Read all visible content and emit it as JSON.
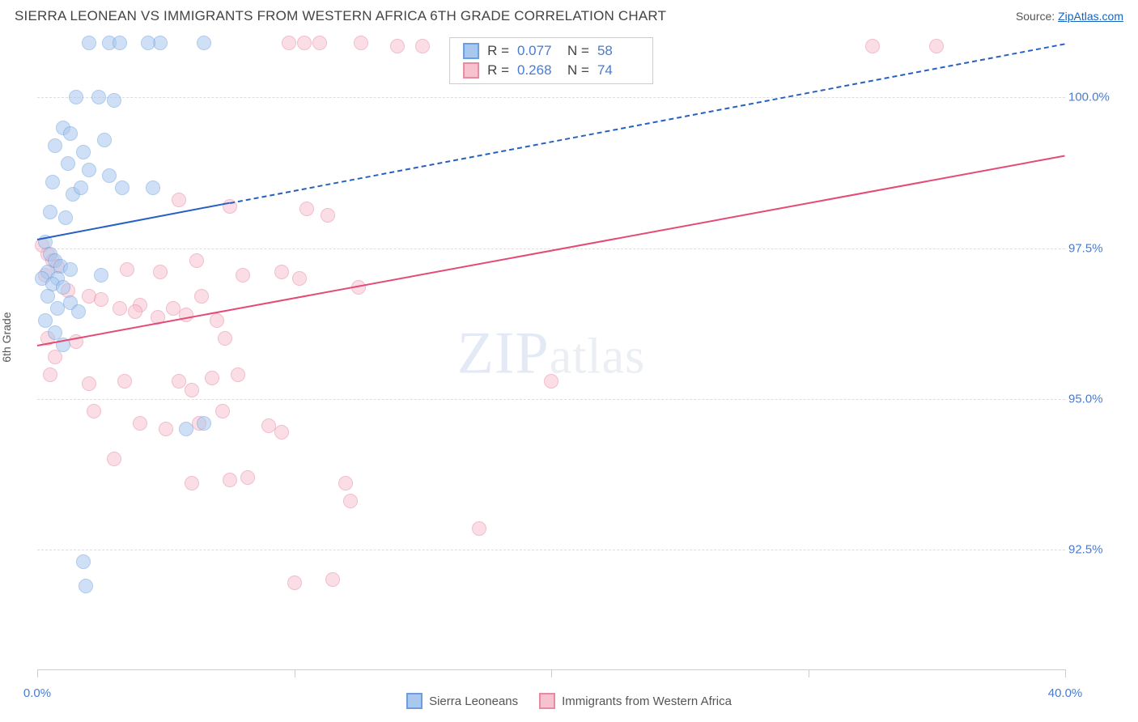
{
  "title": "SIERRA LEONEAN VS IMMIGRANTS FROM WESTERN AFRICA 6TH GRADE CORRELATION CHART",
  "source_label": "Source:",
  "source_link": "ZipAtlas.com",
  "y_axis_label": "6th Grade",
  "watermark": {
    "zip": "ZIP",
    "atlas": "atlas"
  },
  "chart": {
    "type": "scatter",
    "xlim": [
      0,
      40
    ],
    "ylim": [
      90.5,
      101.0
    ],
    "x_ticks": [
      0,
      10,
      20,
      30,
      40
    ],
    "x_tick_labels": [
      "0.0%",
      null,
      null,
      null,
      "40.0%"
    ],
    "y_ticks": [
      92.5,
      95.0,
      97.5,
      100.0
    ],
    "y_tick_labels": [
      "92.5%",
      "95.0%",
      "97.5%",
      "100.0%"
    ],
    "grid_color": "#dddddd",
    "background_color": "#ffffff",
    "marker_size": 18,
    "axis_color": "#cccccc",
    "label_color": "#4a7bd0"
  },
  "series": {
    "sl": {
      "label": "Sierra Leoneans",
      "fill_color": "#a9c8ef",
      "stroke_color": "#6d9fde",
      "fill_opacity": 0.55,
      "line_color": "#2660c2",
      "line_width": 2.5,
      "trend": {
        "x0": 0,
        "y0": 97.65,
        "x1": 40,
        "y1": 100.9,
        "solid_until_x": 7.5
      },
      "R": "0.077",
      "N": "58",
      "points": [
        [
          2.8,
          100.9
        ],
        [
          3.2,
          100.9
        ],
        [
          2.0,
          100.9
        ],
        [
          4.8,
          100.9
        ],
        [
          4.3,
          100.9
        ],
        [
          6.5,
          100.9
        ],
        [
          1.5,
          100.0
        ],
        [
          2.4,
          100.0
        ],
        [
          3.0,
          99.95
        ],
        [
          1.0,
          99.5
        ],
        [
          1.3,
          99.4
        ],
        [
          2.6,
          99.3
        ],
        [
          0.7,
          99.2
        ],
        [
          1.8,
          99.1
        ],
        [
          1.2,
          98.9
        ],
        [
          2.0,
          98.8
        ],
        [
          2.8,
          98.7
        ],
        [
          0.6,
          98.6
        ],
        [
          1.4,
          98.4
        ],
        [
          1.7,
          98.5
        ],
        [
          3.3,
          98.5
        ],
        [
          4.5,
          98.5
        ],
        [
          0.5,
          98.1
        ],
        [
          1.1,
          98.0
        ],
        [
          0.3,
          97.6
        ],
        [
          0.5,
          97.4
        ],
        [
          0.7,
          97.3
        ],
        [
          0.9,
          97.2
        ],
        [
          1.3,
          97.15
        ],
        [
          0.4,
          97.1
        ],
        [
          0.8,
          97.0
        ],
        [
          0.2,
          97.0
        ],
        [
          0.6,
          96.9
        ],
        [
          1.0,
          96.85
        ],
        [
          2.5,
          97.05
        ],
        [
          0.4,
          96.7
        ],
        [
          0.8,
          96.5
        ],
        [
          1.3,
          96.6
        ],
        [
          0.3,
          96.3
        ],
        [
          0.7,
          96.1
        ],
        [
          1.0,
          95.9
        ],
        [
          1.6,
          96.45
        ],
        [
          5.8,
          94.5
        ],
        [
          6.5,
          94.6
        ],
        [
          1.8,
          92.3
        ],
        [
          1.9,
          91.9
        ]
      ]
    },
    "wa": {
      "label": "Immigrants from Western Africa",
      "fill_color": "#f6c2d0",
      "stroke_color": "#e88aa2",
      "fill_opacity": 0.55,
      "line_color": "#e34b75",
      "line_width": 2.5,
      "trend": {
        "x0": 0,
        "y0": 95.9,
        "x1": 40,
        "y1": 99.05,
        "solid_until_x": 40
      },
      "R": "0.268",
      "N": "74",
      "points": [
        [
          9.8,
          100.9
        ],
        [
          10.4,
          100.9
        ],
        [
          11.0,
          100.9
        ],
        [
          12.6,
          100.9
        ],
        [
          14.0,
          100.85
        ],
        [
          15.0,
          100.85
        ],
        [
          19.3,
          100.85
        ],
        [
          20.0,
          100.85
        ],
        [
          20.6,
          100.85
        ],
        [
          32.5,
          100.85
        ],
        [
          35.0,
          100.85
        ],
        [
          5.5,
          98.3
        ],
        [
          7.5,
          98.2
        ],
        [
          10.5,
          98.15
        ],
        [
          11.3,
          98.05
        ],
        [
          0.2,
          97.55
        ],
        [
          0.4,
          97.4
        ],
        [
          0.6,
          97.3
        ],
        [
          0.8,
          97.2
        ],
        [
          0.3,
          97.05
        ],
        [
          3.5,
          97.15
        ],
        [
          4.8,
          97.1
        ],
        [
          6.2,
          97.3
        ],
        [
          8.0,
          97.05
        ],
        [
          9.5,
          97.1
        ],
        [
          10.2,
          97.0
        ],
        [
          1.2,
          96.8
        ],
        [
          2.0,
          96.7
        ],
        [
          2.5,
          96.65
        ],
        [
          3.2,
          96.5
        ],
        [
          4.0,
          96.55
        ],
        [
          3.8,
          96.45
        ],
        [
          4.7,
          96.35
        ],
        [
          5.3,
          96.5
        ],
        [
          5.8,
          96.4
        ],
        [
          6.4,
          96.7
        ],
        [
          7.0,
          96.3
        ],
        [
          7.3,
          96.0
        ],
        [
          0.4,
          96.0
        ],
        [
          1.5,
          95.95
        ],
        [
          0.7,
          95.7
        ],
        [
          0.5,
          95.4
        ],
        [
          2.0,
          95.25
        ],
        [
          3.4,
          95.3
        ],
        [
          5.5,
          95.3
        ],
        [
          6.0,
          95.15
        ],
        [
          6.8,
          95.35
        ],
        [
          7.8,
          95.4
        ],
        [
          12.5,
          96.85
        ],
        [
          2.2,
          94.8
        ],
        [
          4.0,
          94.6
        ],
        [
          5.0,
          94.5
        ],
        [
          6.3,
          94.6
        ],
        [
          7.2,
          94.8
        ],
        [
          9.0,
          94.55
        ],
        [
          9.5,
          94.45
        ],
        [
          20.0,
          95.3
        ],
        [
          3.0,
          94.0
        ],
        [
          6.0,
          93.6
        ],
        [
          7.5,
          93.65
        ],
        [
          8.2,
          93.7
        ],
        [
          12.0,
          93.6
        ],
        [
          12.2,
          93.3
        ],
        [
          17.2,
          92.85
        ],
        [
          11.5,
          92.0
        ],
        [
          10.0,
          91.95
        ]
      ]
    }
  },
  "stats_labels": {
    "R": "R =",
    "N": "N ="
  },
  "legend": {
    "sl": "Sierra Leoneans",
    "wa": "Immigrants from Western Africa"
  }
}
